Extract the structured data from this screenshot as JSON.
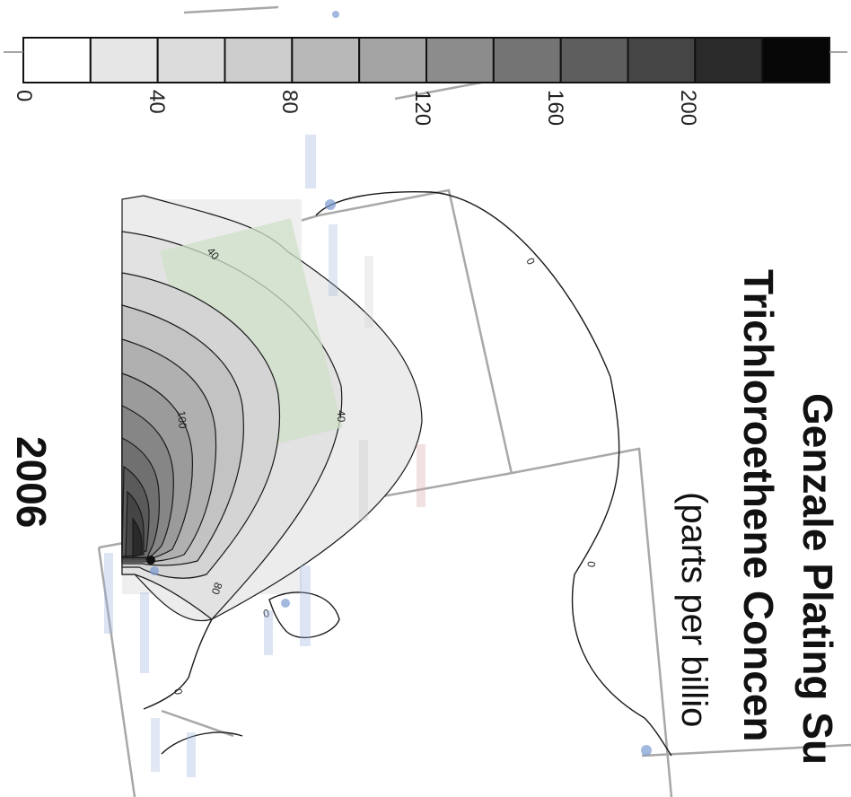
{
  "title": {
    "line1": "Genzale Plating Su",
    "line2": "Trichloroethene Concen",
    "line3": "(parts per billio"
  },
  "year": "2006",
  "legend": {
    "tick_labels": [
      "0",
      "40",
      "80",
      "120",
      "160",
      "200"
    ],
    "bin_colors": [
      "#ffffff",
      "#e6e6e6",
      "#dcdcdc",
      "#cccccc",
      "#b8b8b8",
      "#a4a4a4",
      "#8c8c8c",
      "#747474",
      "#5e5e5e",
      "#454545",
      "#2a2a2a",
      "#060606"
    ]
  },
  "contours": {
    "labels": [
      "0",
      "0",
      "0",
      "0",
      "40",
      "40",
      "80",
      "100"
    ]
  },
  "colors": {
    "site_fill": "#cfe0c8",
    "well_marker": "#6a8cc8",
    "outline": "#999999"
  }
}
